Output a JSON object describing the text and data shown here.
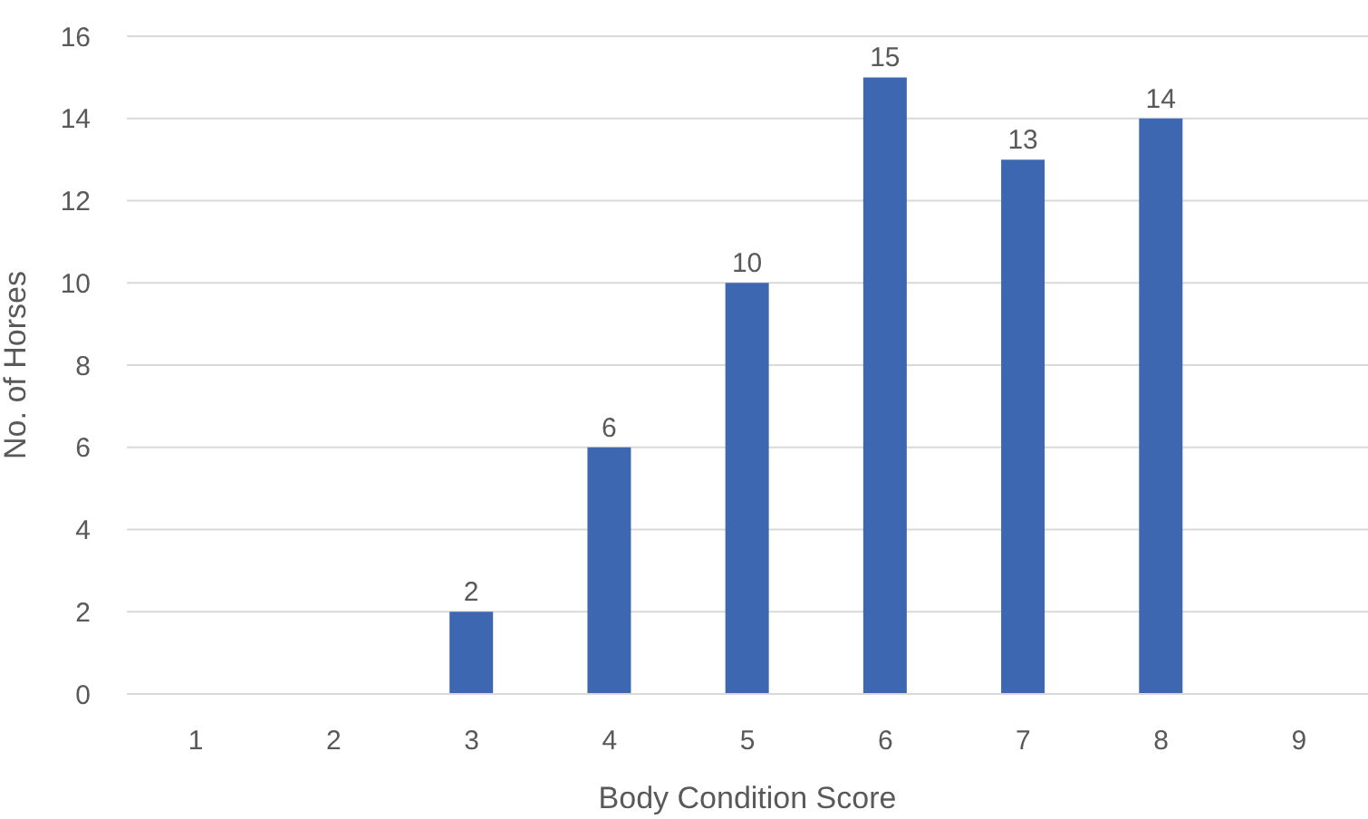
{
  "chart_data": {
    "type": "bar",
    "xlabel": "Body Condition Score",
    "ylabel": "No. of Horses",
    "categories": [
      "1",
      "2",
      "3",
      "4",
      "5",
      "6",
      "7",
      "8",
      "9"
    ],
    "values": [
      0,
      0,
      2,
      6,
      10,
      15,
      13,
      14,
      0
    ],
    "value_labels": [
      null,
      null,
      "2",
      "6",
      "10",
      "15",
      "13",
      "14",
      null
    ],
    "color": "#3d67b0",
    "ylim": [
      0,
      16
    ],
    "yticks": [
      0,
      2,
      4,
      6,
      8,
      10,
      12,
      14,
      16
    ],
    "grid": "y",
    "legend": false
  }
}
